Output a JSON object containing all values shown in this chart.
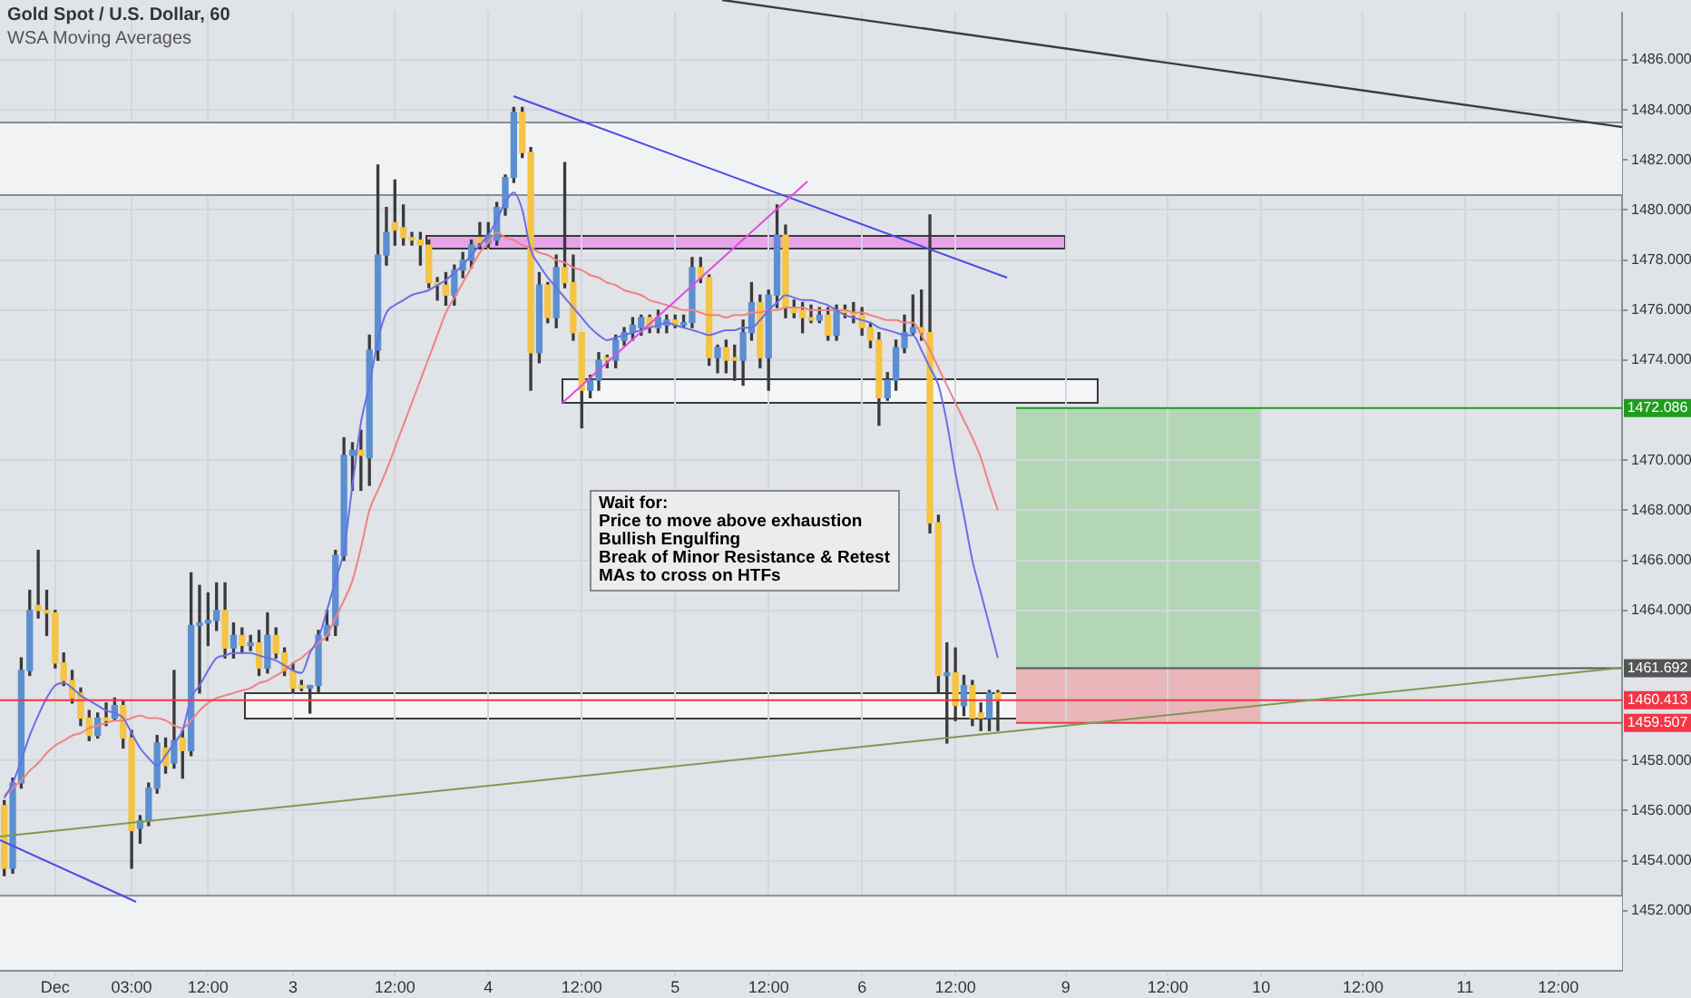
{
  "chart_data": {
    "type": "candlestick",
    "title": "Gold Spot / U.S. Dollar, 60",
    "subtitle": "WSA Moving Averages",
    "annotations": [
      "Wait for:\nPrice to move above exhaustion\nBullish Engulfing\nBreak of Minor Resistance & Retest\nMAs to cross on HTFs"
    ],
    "categories": [
      null,
      null,
      null,
      null,
      null,
      null,
      "Dec",
      null,
      null,
      null,
      null,
      null,
      null,
      null,
      null,
      "03:00",
      null,
      null,
      null,
      null,
      null,
      null,
      null,
      null,
      "12:00",
      null,
      null,
      null,
      null,
      null,
      null,
      null,
      null,
      null,
      "3",
      null,
      null,
      null,
      null,
      null,
      null,
      null,
      null,
      null,
      null,
      null,
      "12:00",
      null,
      null,
      null,
      null,
      null,
      null,
      null,
      null,
      null,
      null,
      "4",
      null,
      null,
      null,
      null,
      null,
      null,
      null,
      null,
      null,
      null,
      "12:00",
      null,
      null,
      null,
      null,
      null,
      null,
      null,
      null,
      null,
      null,
      "5",
      null,
      null,
      null,
      null,
      null,
      null,
      null,
      null,
      null,
      null,
      "12:00",
      null,
      null,
      null,
      null,
      null,
      null,
      null,
      null,
      null,
      null,
      "6",
      null,
      null,
      null,
      null,
      null,
      null,
      null,
      null,
      null,
      null,
      "12:00",
      null,
      null,
      null,
      null,
      null,
      null,
      null,
      null,
      null,
      null,
      null,
      null,
      "9",
      null,
      null,
      null,
      null,
      null,
      null,
      null,
      null,
      null,
      null,
      null,
      "12:00",
      null,
      null,
      null,
      null,
      null,
      null,
      null,
      null,
      null,
      null,
      "10",
      null,
      null,
      null,
      null,
      null,
      null,
      null,
      null,
      null,
      null,
      null,
      "12:00",
      null,
      null,
      null,
      null,
      null,
      null,
      null,
      null,
      null,
      null,
      null,
      "11",
      null,
      null,
      null,
      null,
      null,
      null,
      null,
      null,
      null,
      null,
      "12:00",
      null,
      null,
      null,
      null,
      null,
      null,
      null
    ],
    "ohlc": [
      [
        1456.2,
        1456.4,
        1453.4,
        1453.7
      ],
      [
        1453.7,
        1457.3,
        1453.5,
        1457.1
      ],
      [
        1457.1,
        1462.1,
        1456.9,
        1461.6
      ],
      [
        1461.6,
        1464.8,
        1461.4,
        1464.0
      ],
      [
        1464.2,
        1466.4,
        1463.7,
        1464.0
      ],
      [
        1464.0,
        1464.8,
        1463.0,
        1463.9
      ],
      [
        1463.9,
        1464.0,
        1461.7,
        1461.9
      ],
      [
        1461.9,
        1462.3,
        1461.0,
        1461.2
      ],
      [
        1461.2,
        1461.6,
        1460.3,
        1460.5
      ],
      [
        1460.7,
        1460.9,
        1459.4,
        1459.7
      ],
      [
        1459.7,
        1460.0,
        1458.8,
        1459.0
      ],
      [
        1459.0,
        1459.9,
        1458.9,
        1459.7
      ],
      [
        1459.7,
        1460.3,
        1459.4,
        1459.6
      ],
      [
        1459.7,
        1460.5,
        1459.6,
        1460.2
      ],
      [
        1460.2,
        1460.4,
        1458.5,
        1458.9
      ],
      [
        1458.9,
        1459.2,
        1453.7,
        1455.2
      ],
      [
        1455.3,
        1455.8,
        1454.7,
        1455.6
      ],
      [
        1455.6,
        1457.1,
        1455.4,
        1456.9
      ],
      [
        1456.9,
        1459.0,
        1456.7,
        1458.7
      ],
      [
        1458.5,
        1458.9,
        1457.5,
        1457.8
      ],
      [
        1457.9,
        1461.6,
        1457.7,
        1458.8
      ],
      [
        1458.9,
        1459.2,
        1457.3,
        1458.4
      ],
      [
        1458.4,
        1465.5,
        1458.2,
        1463.4
      ],
      [
        1463.4,
        1465.0,
        1460.7,
        1463.5
      ],
      [
        1463.5,
        1464.7,
        1462.6,
        1463.6
      ],
      [
        1463.6,
        1465.1,
        1463.2,
        1464.0
      ],
      [
        1464.0,
        1465.1,
        1462.1,
        1462.5
      ],
      [
        1462.5,
        1463.5,
        1462.1,
        1463.0
      ],
      [
        1463.0,
        1463.3,
        1462.3,
        1462.6
      ],
      [
        1462.6,
        1463.0,
        1462.4,
        1462.7
      ],
      [
        1462.7,
        1463.2,
        1461.4,
        1461.7
      ],
      [
        1461.7,
        1463.9,
        1461.5,
        1463.0
      ],
      [
        1463.0,
        1463.3,
        1462.1,
        1462.3
      ],
      [
        1462.3,
        1462.5,
        1461.4,
        1461.6
      ],
      [
        1461.6,
        1461.9,
        1460.7,
        1460.9
      ],
      [
        1461.0,
        1461.2,
        1460.8,
        1460.9
      ],
      [
        1460.9,
        1461.0,
        1459.9,
        1461.0
      ],
      [
        1461.0,
        1463.2,
        1460.7,
        1463.0
      ],
      [
        1463.0,
        1464.0,
        1462.8,
        1463.4
      ],
      [
        1463.4,
        1466.4,
        1463.0,
        1466.2
      ],
      [
        1466.2,
        1470.9,
        1466.0,
        1470.2
      ],
      [
        1470.2,
        1470.7,
        1468.8,
        1470.4
      ],
      [
        1470.4,
        1471.2,
        1468.8,
        1470.2
      ],
      [
        1470.1,
        1475.0,
        1469.0,
        1474.4
      ],
      [
        1474.4,
        1481.8,
        1474.0,
        1478.2
      ],
      [
        1478.2,
        1480.1,
        1477.8,
        1479.1
      ],
      [
        1479.5,
        1481.2,
        1478.6,
        1479.2
      ],
      [
        1479.3,
        1480.2,
        1478.6,
        1478.9
      ],
      [
        1478.9,
        1479.1,
        1478.6,
        1478.8
      ],
      [
        1478.8,
        1479.1,
        1477.8,
        1478.6
      ],
      [
        1478.6,
        1478.8,
        1476.9,
        1477.1
      ],
      [
        1477.1,
        1477.3,
        1476.4,
        1477.0
      ],
      [
        1477.0,
        1477.5,
        1476.2,
        1476.6
      ],
      [
        1476.6,
        1477.8,
        1476.2,
        1477.6
      ],
      [
        1477.6,
        1478.3,
        1477.3,
        1478.0
      ],
      [
        1478.0,
        1478.8,
        1477.7,
        1478.6
      ],
      [
        1478.9,
        1479.5,
        1478.5,
        1478.7
      ],
      [
        1478.7,
        1479.5,
        1478.5,
        1479.0
      ],
      [
        1478.8,
        1480.3,
        1478.6,
        1480.1
      ],
      [
        1480.1,
        1481.4,
        1479.8,
        1481.3
      ],
      [
        1481.3,
        1484.1,
        1481.1,
        1483.9
      ],
      [
        1483.9,
        1484.1,
        1482.1,
        1482.3
      ],
      [
        1482.3,
        1482.5,
        1472.8,
        1474.3
      ],
      [
        1474.3,
        1477.5,
        1473.9,
        1477.0
      ],
      [
        1477.0,
        1477.1,
        1475.5,
        1475.7
      ],
      [
        1475.7,
        1478.2,
        1475.3,
        1477.7
      ],
      [
        1477.7,
        1481.9,
        1476.9,
        1477.1
      ],
      [
        1477.1,
        1478.2,
        1474.8,
        1475.1
      ],
      [
        1475.1,
        1475.1,
        1471.3,
        1472.8
      ],
      [
        1472.8,
        1473.4,
        1472.5,
        1473.2
      ],
      [
        1473.2,
        1474.3,
        1472.8,
        1474.0
      ],
      [
        1474.1,
        1474.2,
        1473.7,
        1474.0
      ],
      [
        1474.0,
        1475.0,
        1473.7,
        1474.8
      ],
      [
        1474.8,
        1475.3,
        1474.6,
        1475.1
      ],
      [
        1475.1,
        1475.7,
        1474.8,
        1475.4
      ],
      [
        1475.3,
        1475.8,
        1475.0,
        1475.7
      ],
      [
        1475.7,
        1475.8,
        1475.1,
        1475.3
      ],
      [
        1475.3,
        1476.0,
        1475.1,
        1475.7
      ],
      [
        1475.4,
        1475.8,
        1475.1,
        1475.6
      ],
      [
        1475.6,
        1475.8,
        1475.3,
        1475.4
      ],
      [
        1475.4,
        1475.8,
        1475.3,
        1475.5
      ],
      [
        1475.5,
        1478.1,
        1475.3,
        1477.7
      ],
      [
        1477.7,
        1478.1,
        1477.1,
        1477.3
      ],
      [
        1477.3,
        1477.4,
        1473.8,
        1474.1
      ],
      [
        1474.1,
        1474.6,
        1473.5,
        1474.5
      ],
      [
        1474.5,
        1474.8,
        1473.5,
        1474.0
      ],
      [
        1474.1,
        1474.6,
        1473.2,
        1474.0
      ],
      [
        1474.0,
        1475.6,
        1473.0,
        1475.1
      ],
      [
        1475.1,
        1477.1,
        1474.8,
        1476.3
      ],
      [
        1476.3,
        1476.6,
        1473.7,
        1474.1
      ],
      [
        1474.1,
        1476.8,
        1472.8,
        1476.6
      ],
      [
        1476.6,
        1480.2,
        1476.1,
        1479.0
      ],
      [
        1479.0,
        1479.4,
        1475.7,
        1476.1
      ],
      [
        1476.1,
        1476.4,
        1475.7,
        1475.9
      ],
      [
        1476.0,
        1476.3,
        1475.1,
        1475.7
      ],
      [
        1475.7,
        1476.2,
        1475.5,
        1475.6
      ],
      [
        1475.6,
        1476.1,
        1475.5,
        1475.8
      ],
      [
        1475.8,
        1476.1,
        1474.8,
        1475.0
      ],
      [
        1475.0,
        1476.2,
        1474.8,
        1476.0
      ],
      [
        1476.0,
        1476.2,
        1475.7,
        1475.9
      ],
      [
        1475.9,
        1476.3,
        1475.5,
        1475.8
      ],
      [
        1475.8,
        1476.1,
        1475.0,
        1475.3
      ],
      [
        1475.3,
        1475.5,
        1474.5,
        1474.8
      ],
      [
        1474.8,
        1475.1,
        1471.4,
        1472.5
      ],
      [
        1472.5,
        1473.5,
        1472.4,
        1473.2
      ],
      [
        1473.2,
        1474.8,
        1472.8,
        1474.5
      ],
      [
        1474.5,
        1475.8,
        1474.3,
        1475.1
      ],
      [
        1475.1,
        1476.6,
        1475.0,
        1475.3
      ],
      [
        1475.3,
        1476.8,
        1474.8,
        1475.1
      ],
      [
        1475.1,
        1479.8,
        1467.1,
        1467.5
      ],
      [
        1467.5,
        1467.8,
        1460.7,
        1461.4
      ],
      [
        1461.4,
        1462.7,
        1458.7,
        1461.5
      ],
      [
        1461.5,
        1462.5,
        1459.6,
        1460.2
      ],
      [
        1460.2,
        1461.4,
        1459.8,
        1461.0
      ],
      [
        1461.0,
        1461.2,
        1459.4,
        1459.7
      ],
      [
        1459.9,
        1460.3,
        1459.2,
        1459.7
      ],
      [
        1459.7,
        1460.8,
        1459.2,
        1460.7
      ],
      [
        1460.7,
        1460.8,
        1459.2,
        1460.4
      ],
      null,
      null,
      null,
      null,
      null,
      null,
      null,
      null,
      null,
      null,
      null,
      null,
      null,
      null,
      null,
      null,
      null,
      null,
      null,
      null,
      null,
      null,
      null,
      null,
      null,
      null,
      null,
      null,
      null,
      null,
      null,
      null,
      null,
      null,
      null,
      null,
      null,
      null,
      null,
      null,
      null,
      null,
      null,
      null,
      null,
      null,
      null,
      null,
      null,
      null,
      null,
      null,
      null,
      null,
      null,
      null,
      null,
      null,
      null,
      null,
      null,
      null,
      null,
      null,
      null,
      null,
      null,
      null,
      null,
      null,
      null,
      null,
      null
    ],
    "colors": [
      "#f5c444",
      "#5b8fd1",
      "#5b8fd1",
      "#5b8fd1",
      "#f5c444",
      "#f5c444",
      "#f5c444",
      "#f5c444",
      "#f5c444",
      "#f5c444",
      "#f5c444",
      "#5b8fd1",
      "#f5c444",
      "#5b8fd1",
      "#f5c444",
      "#f5c444",
      "#5b8fd1",
      "#5b8fd1",
      "#5b8fd1",
      "#f5c444",
      "#5b8fd1",
      "#f5c444",
      "#5b8fd1",
      "#5b8fd1",
      "#5b8fd1",
      "#5b8fd1",
      "#f5c444",
      "#5b8fd1",
      "#f5c444",
      "#5b8fd1",
      "#f5c444",
      "#5b8fd1",
      "#f5c444",
      "#f5c444",
      "#f5c444",
      "#f5c444",
      "#5b8fd1",
      "#5b8fd1",
      "#5b8fd1",
      "#5b8fd1",
      "#5b8fd1",
      "#5b8fd1",
      "#f5c444",
      "#5b8fd1",
      "#5b8fd1",
      "#5b8fd1",
      "#f5c444",
      "#f5c444",
      "#f5c444",
      "#f5c444",
      "#f5c444",
      "#f5c444",
      "#f5c444",
      "#5b8fd1",
      "#5b8fd1",
      "#5b8fd1",
      "#f5c444",
      "#5b8fd1",
      "#5b8fd1",
      "#5b8fd1",
      "#5b8fd1",
      "#f5c444",
      "#f5c444",
      "#5b8fd1",
      "#f5c444",
      "#5b8fd1",
      "#f5c444",
      "#f5c444",
      "#f5c444",
      "#5b8fd1",
      "#5b8fd1",
      "#f5c444",
      "#5b8fd1",
      "#5b8fd1",
      "#5b8fd1",
      "#5b8fd1",
      "#f5c444",
      "#5b8fd1",
      "#5b8fd1",
      "#f5c444",
      "#5b8fd1",
      "#5b8fd1",
      "#f5c444",
      "#f5c444",
      "#5b8fd1",
      "#f5c444",
      "#f5c444",
      "#5b8fd1",
      "#5b8fd1",
      "#f5c444",
      "#5b8fd1",
      "#5b8fd1",
      "#f5c444",
      "#f5c444",
      "#f5c444",
      "#f5c444",
      "#5b8fd1",
      "#f5c444",
      "#5b8fd1",
      "#f5c444",
      "#f5c444",
      "#f5c444",
      "#f5c444",
      "#f5c444",
      "#5b8fd1",
      "#5b8fd1",
      "#5b8fd1",
      "#5b8fd1",
      "#f5c444",
      "#f5c444",
      "#f5c444",
      "#5b8fd1",
      "#f5c444",
      "#5b8fd1",
      "#f5c444",
      "#f5c444",
      "#5b8fd1",
      "#f5c444",
      null,
      null,
      null,
      null,
      null,
      null,
      null,
      null,
      null,
      null,
      null,
      null,
      null,
      null,
      null,
      null,
      null,
      null,
      null,
      null,
      null,
      null,
      null,
      null,
      null,
      null,
      null,
      null,
      null,
      null,
      null,
      null,
      null,
      null,
      null,
      null,
      null,
      null,
      null,
      null,
      null,
      null,
      null,
      null,
      null,
      null,
      null,
      null,
      null,
      null,
      null,
      null,
      null,
      null,
      null,
      null,
      null,
      null,
      null,
      null,
      null,
      null,
      null,
      null,
      null,
      null,
      null,
      null,
      null,
      null,
      null,
      null,
      null
    ],
    "series": [
      {
        "type": "line",
        "color": "#6b6fe6",
        "values": [
          1456.5,
          1457.1,
          1458.0,
          1459.0,
          1459.8,
          1460.5,
          1461.0,
          1461.1,
          1460.9,
          1460.6,
          1460.4,
          1460.2,
          1460.0,
          1459.9,
          1459.7,
          1459.1,
          1458.5,
          1458.1,
          1457.8,
          1458.2,
          1458.7,
          1459.2,
          1460.5,
          1461.0,
          1461.6,
          1462.1,
          1462.2,
          1462.3,
          1462.3,
          1462.3,
          1462.2,
          1462.1,
          1462.0,
          1461.8,
          1461.6,
          1461.5,
          1462.3,
          1462.9,
          1464.0,
          1465.2,
          1466.4,
          1469.0,
          1471.5,
          1473.0,
          1474.8,
          1475.9,
          1476.2,
          1476.4,
          1476.6,
          1476.7,
          1476.8,
          1477.0,
          1477.2,
          1477.5,
          1477.8,
          1478.2,
          1478.6,
          1479.0,
          1479.6,
          1480.3,
          1480.7,
          1480.0,
          1478.4,
          1477.8,
          1477.3,
          1476.9,
          1476.5,
          1476.1,
          1475.7,
          1475.3,
          1475.0,
          1474.8,
          1474.9,
          1475.0,
          1475.1,
          1475.2,
          1475.3,
          1475.4,
          1475.5,
          1475.4,
          1475.3,
          1475.2,
          1475.1,
          1475.0,
          1475.1,
          1475.2,
          1475.2,
          1475.3,
          1475.3,
          1475.6,
          1476.0,
          1476.3,
          1476.6,
          1476.5,
          1476.4,
          1476.4,
          1476.3,
          1476.2,
          1476.0,
          1475.8,
          1475.7,
          1475.6,
          1475.5,
          1475.3,
          1475.2,
          1475.1,
          1475.0,
          1475.0,
          1474.4,
          1473.7,
          1473.0,
          1471.5,
          1469.5,
          1467.8,
          1466.0,
          1464.7,
          1463.4,
          1462.1,
          null,
          null,
          null,
          null,
          null,
          null,
          null,
          null,
          null,
          null,
          null,
          null,
          null,
          null,
          null,
          null,
          null,
          null,
          null,
          null,
          null,
          null,
          null,
          null,
          null,
          null,
          null,
          null,
          null,
          null,
          null,
          null,
          null,
          null,
          null,
          null,
          null,
          null,
          null,
          null,
          null,
          null,
          null,
          null,
          null,
          null,
          null,
          null,
          null,
          null,
          null,
          null,
          null,
          null,
          null,
          null,
          null,
          null,
          null,
          null,
          null,
          null,
          null,
          null,
          null,
          null,
          null,
          null,
          null,
          null,
          null,
          null,
          null
        ]
      },
      {
        "type": "line",
        "color": "#f08282",
        "values": [
          1456.6,
          1456.9,
          1457.2,
          1457.6,
          1457.9,
          1458.3,
          1458.6,
          1458.8,
          1459.0,
          1459.1,
          1459.3,
          1459.4,
          1459.5,
          1459.6,
          1459.6,
          1459.7,
          1459.8,
          1459.7,
          1459.7,
          1459.6,
          1459.4,
          1459.3,
          1459.6,
          1460.0,
          1460.3,
          1460.5,
          1460.6,
          1460.7,
          1460.8,
          1460.9,
          1461.1,
          1461.2,
          1461.4,
          1461.6,
          1461.9,
          1462.1,
          1462.4,
          1462.7,
          1463.0,
          1463.7,
          1464.4,
          1465.2,
          1466.5,
          1468.0,
          1468.8,
          1469.6,
          1470.5,
          1471.4,
          1472.3,
          1473.2,
          1474.1,
          1475.0,
          1475.9,
          1476.5,
          1477.1,
          1477.7,
          1478.3,
          1478.7,
          1479.1,
          1478.9,
          1478.8,
          1478.6,
          1478.5,
          1478.3,
          1478.2,
          1478.0,
          1477.9,
          1477.7,
          1477.6,
          1477.4,
          1477.3,
          1477.1,
          1477.0,
          1476.8,
          1476.7,
          1476.6,
          1476.4,
          1476.3,
          1476.2,
          1476.1,
          1476.0,
          1476.0,
          1475.9,
          1475.8,
          1475.8,
          1475.7,
          1475.8,
          1475.8,
          1475.9,
          1475.9,
          1476.0,
          1476.0,
          1476.1,
          1476.1,
          1476.1,
          1476.0,
          1476.0,
          1476.0,
          1476.0,
          1476.0,
          1475.9,
          1475.9,
          1475.8,
          1475.7,
          1475.6,
          1475.6,
          1475.5,
          1475.5,
          1475.0,
          1474.4,
          1473.7,
          1473.0,
          1472.3,
          1471.6,
          1470.9,
          1470.1,
          1469.0,
          1468.0,
          null,
          null,
          null,
          null,
          null,
          null,
          null,
          null,
          null,
          null,
          null,
          null,
          null,
          null,
          null,
          null,
          null,
          null,
          null,
          null,
          null,
          null,
          null,
          null,
          null,
          null,
          null,
          null,
          null,
          null,
          null,
          null,
          null,
          null,
          null,
          null,
          null,
          null,
          null,
          null,
          null,
          null,
          null,
          null,
          null,
          null,
          null,
          null,
          null,
          null,
          null,
          null,
          null,
          null,
          null,
          null,
          null,
          null,
          null,
          null,
          null,
          null,
          null,
          null,
          null,
          null,
          null,
          null,
          null,
          null,
          null,
          null,
          null
        ]
      }
    ],
    "ylim": [
      1449.6,
      1487.9
    ],
    "yticks": [
      {
        "value": 1452,
        "label": "1452.000"
      },
      {
        "value": 1454,
        "label": "1454.000"
      },
      {
        "value": 1456,
        "label": "1456.000"
      },
      {
        "value": 1458,
        "label": "1458.000"
      },
      {
        "value": 1464,
        "label": "1464.000"
      },
      {
        "value": 1466,
        "label": "1466.000"
      },
      {
        "value": 1468,
        "label": "1468.000"
      },
      {
        "value": 1470,
        "label": "1470.000"
      },
      {
        "value": 1474,
        "label": "1474.000"
      },
      {
        "value": 1476,
        "label": "1476.000"
      },
      {
        "value": 1478,
        "label": "1478.000"
      },
      {
        "value": 1480,
        "label": "1480.000"
      },
      {
        "value": 1482,
        "label": "1482.000"
      },
      {
        "value": 1484,
        "label": "1484.000"
      },
      {
        "value": 1486,
        "label": "1486.000"
      }
    ],
    "bands": [
      {
        "axis": "y",
        "from": 1480.6,
        "to": 1483.5,
        "color": "#f1f2f4"
      },
      {
        "axis": "y",
        "from": 1449.6,
        "to": 1452.6,
        "color": "#f1f2f4"
      }
    ],
    "ref_lines": [
      {
        "axis": "y",
        "value": 1460.413,
        "label": "1460.413",
        "color": "#f23645",
        "line_style": "solid"
      },
      {
        "axis": "y",
        "value": 1472.086,
        "label": "1472.086",
        "color": "#1f9d1f"
      },
      {
        "axis": "y",
        "value": 1461.692,
        "label": "1461.692",
        "color": "#555555"
      },
      {
        "axis": "y",
        "value": 1459.507,
        "label": "1459.507",
        "color": "#f23645"
      }
    ],
    "grid": true,
    "legend": false
  }
}
